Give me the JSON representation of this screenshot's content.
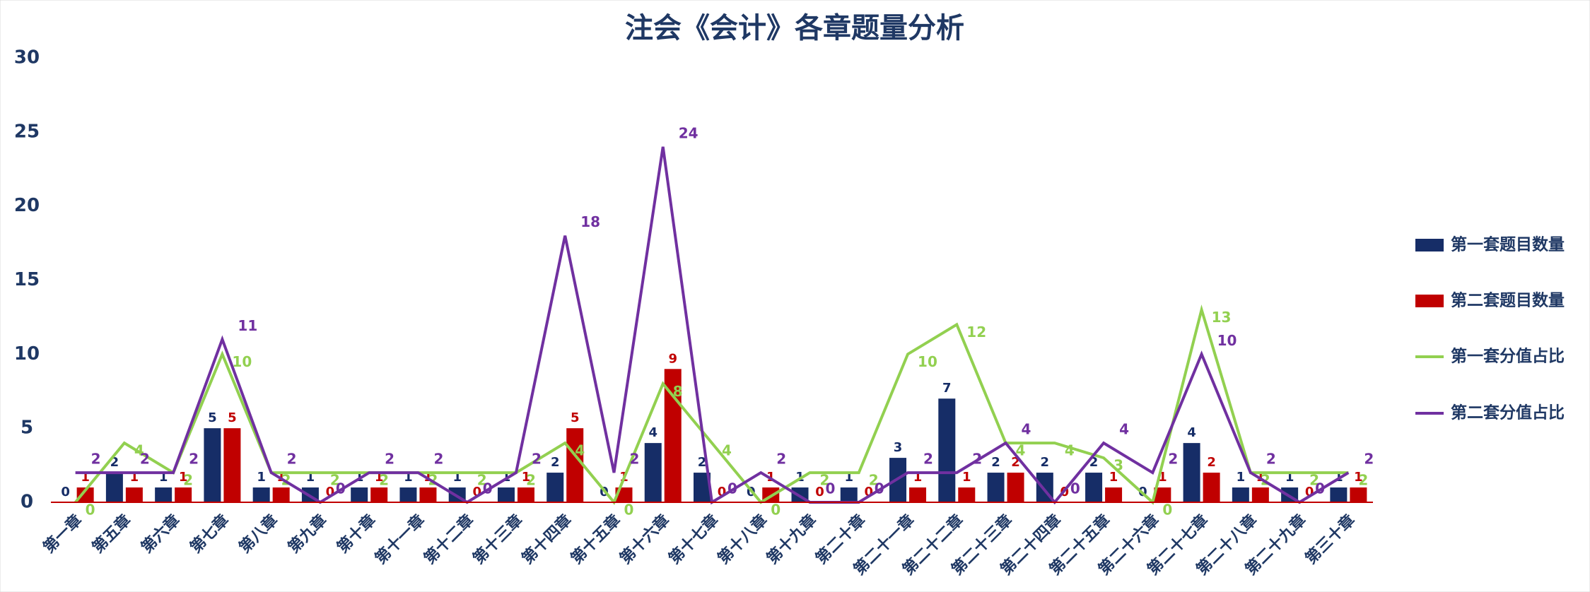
{
  "chart_data": {
    "type": "bar-line",
    "title": "注会《会计》各章题量分析",
    "categories": [
      "第一章",
      "第五章",
      "第六章",
      "第七章",
      "第八章",
      "第九章",
      "第十章",
      "第十一章",
      "第十二章",
      "第十三章",
      "第十四章",
      "第十五章",
      "第十六章",
      "第十七章",
      "第十八章",
      "第十九章",
      "第二十章",
      "第二十一章",
      "第二十二章",
      "第二十三章",
      "第二十四章",
      "第二十五章",
      "第二十六章",
      "第二十七章",
      "第二十八章",
      "第二十九章",
      "第三十章"
    ],
    "series": [
      {
        "name": "第一套题目数量",
        "color": "#162d67",
        "kind": "bar",
        "values": [
          0,
          2,
          1,
          5,
          1,
          1,
          1,
          1,
          1,
          1,
          2,
          0,
          4,
          2,
          0,
          1,
          1,
          3,
          7,
          2,
          2,
          2,
          0,
          4,
          1,
          1,
          1
        ]
      },
      {
        "name": "第二套题目数量",
        "color": "#c00000",
        "kind": "bar",
        "values": [
          1,
          1,
          1,
          5,
          1,
          0,
          1,
          1,
          0,
          1,
          5,
          1,
          9,
          0,
          1,
          0,
          0,
          1,
          1,
          2,
          0,
          1,
          1,
          2,
          1,
          0,
          1
        ]
      },
      {
        "name": "第一套分值占比",
        "color": "#92d050",
        "kind": "line",
        "values": [
          0,
          4,
          2,
          10,
          2,
          2,
          2,
          2,
          2,
          2,
          4,
          0,
          8,
          4,
          0,
          2,
          2,
          10,
          12,
          4,
          4,
          3,
          0,
          13,
          2,
          2,
          2
        ]
      },
      {
        "name": "第二套分值占比",
        "color": "#7030a0",
        "kind": "line",
        "values": [
          2,
          2,
          2,
          11,
          2,
          0,
          2,
          2,
          0,
          2,
          18,
          2,
          24,
          0,
          2,
          0,
          0,
          2,
          2,
          4,
          0,
          4,
          2,
          10,
          2,
          0,
          2
        ]
      }
    ],
    "ylim": [
      0,
      30
    ],
    "yticks": [
      0,
      5,
      10,
      15,
      20,
      25,
      30
    ],
    "legend": "right"
  }
}
